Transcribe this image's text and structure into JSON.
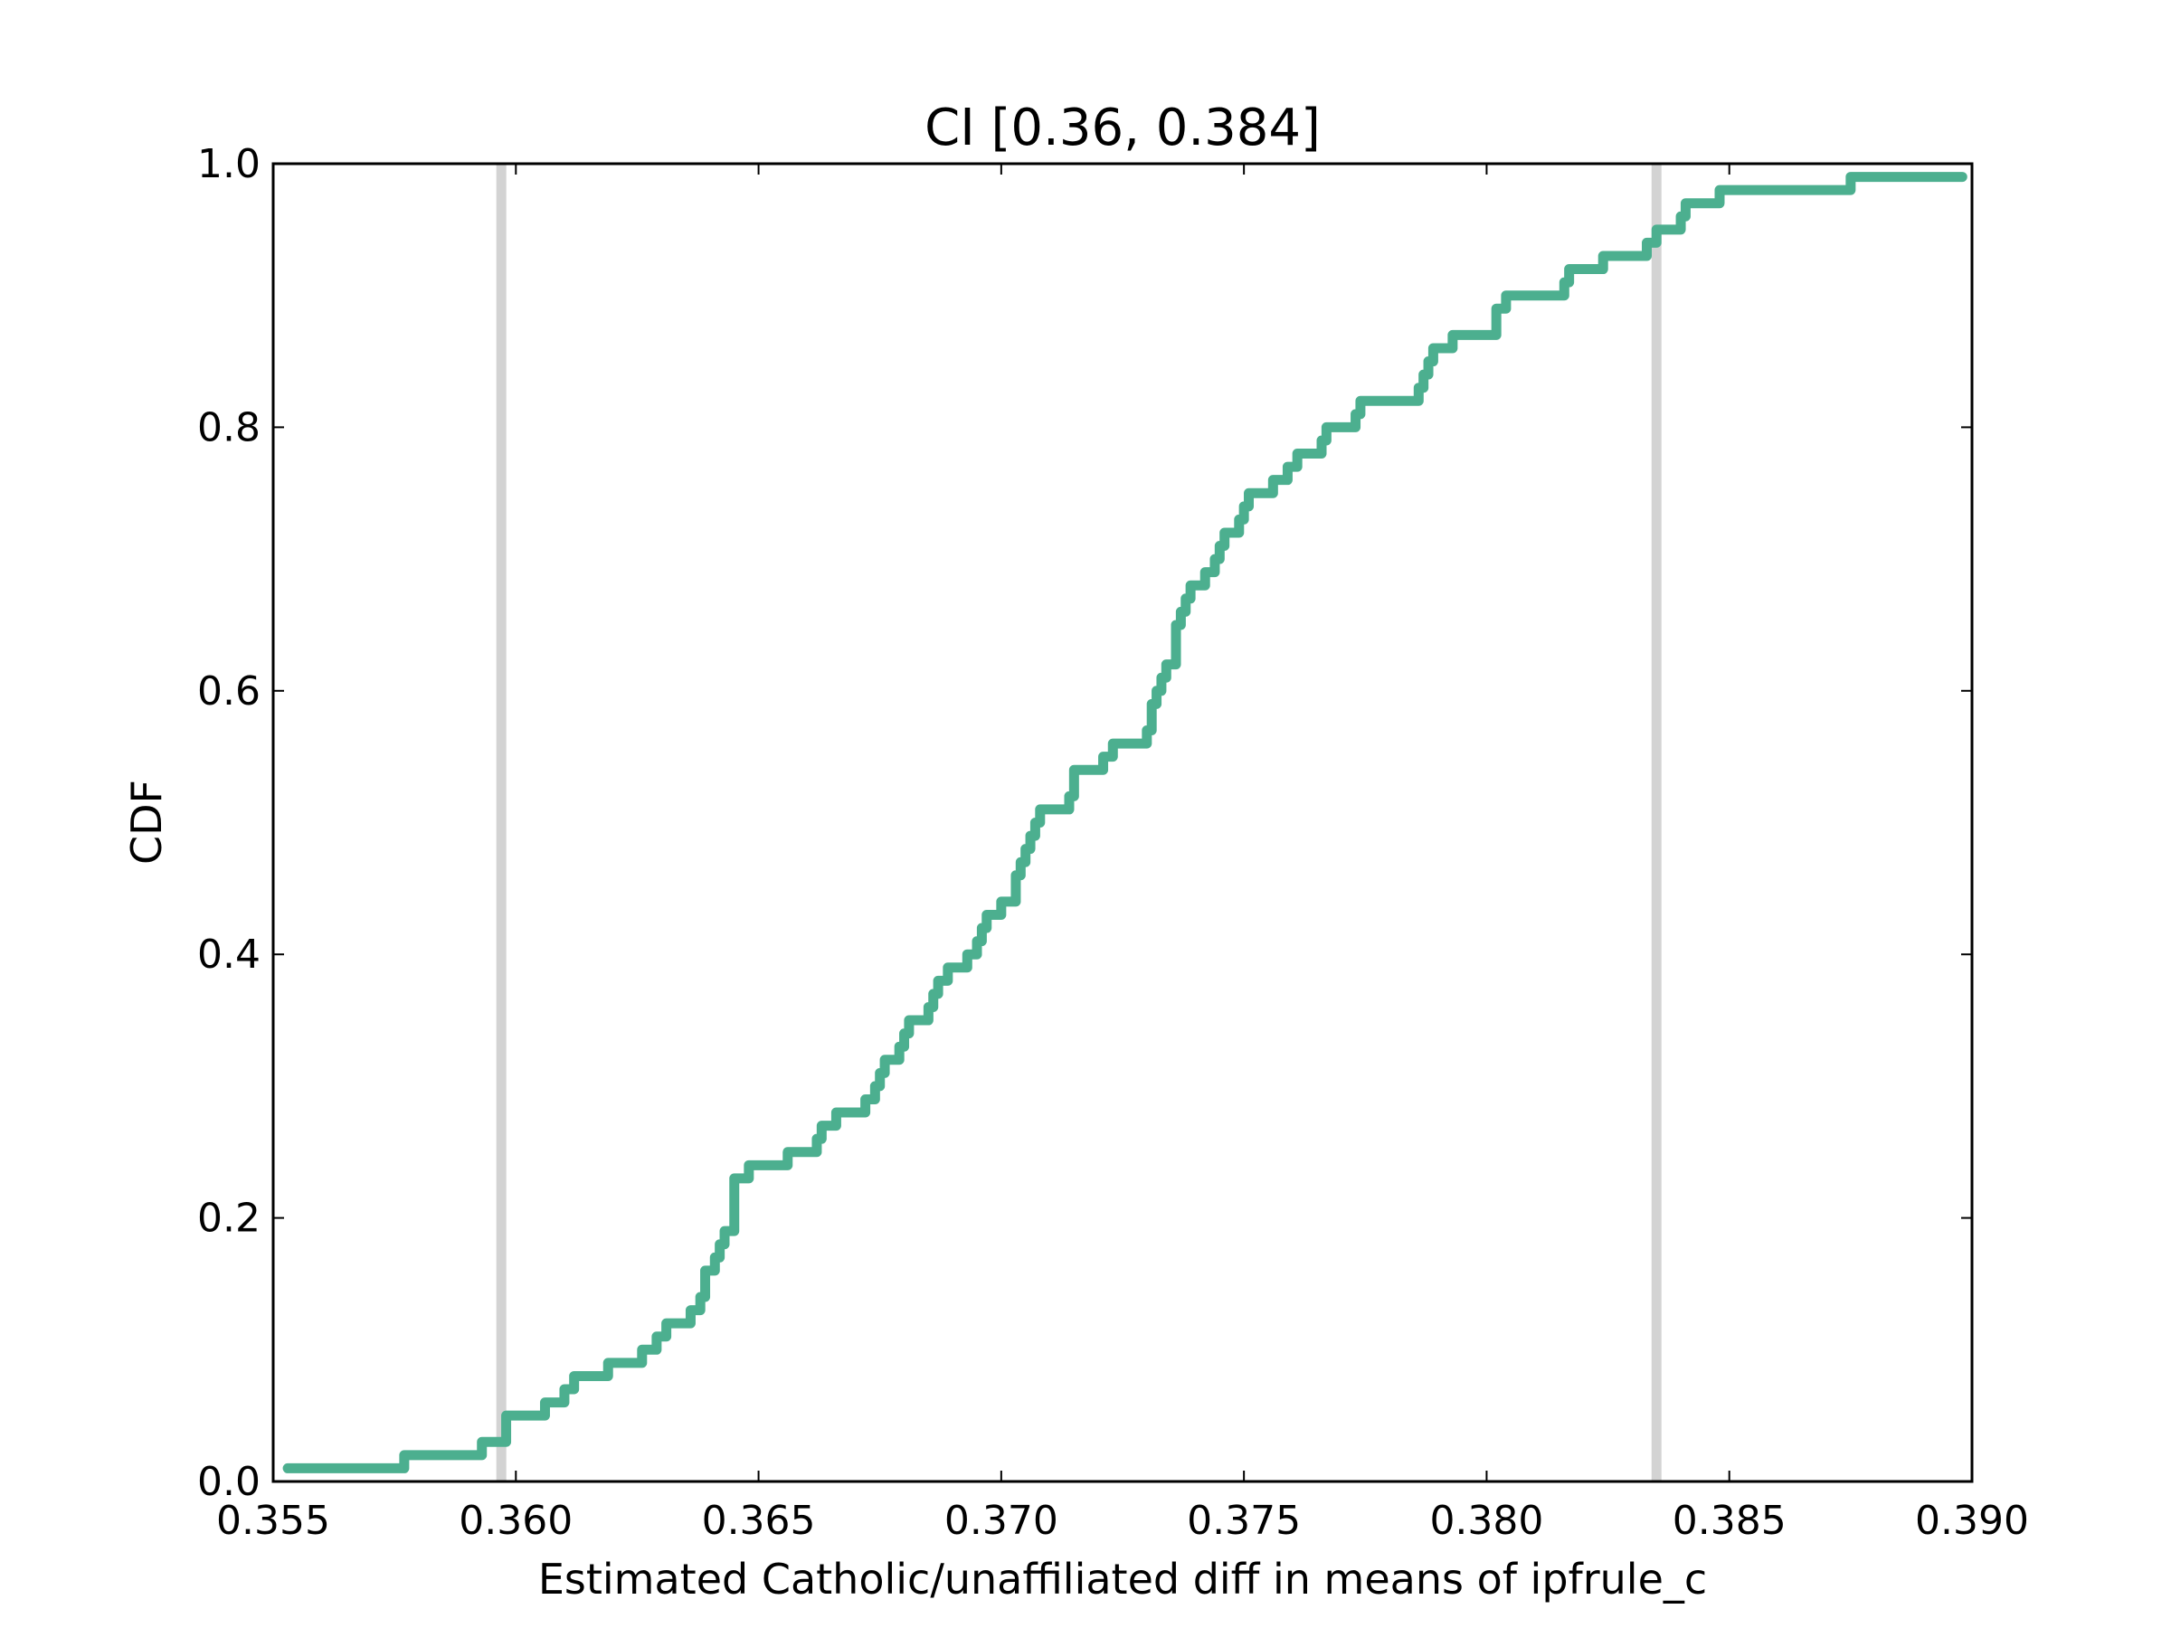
{
  "chart_data": {
    "type": "line",
    "step": true,
    "title": "CI [0.36, 0.384]",
    "xlabel": "Estimated Catholic/unaffiliated diff in means of ipfrule_c",
    "ylabel": "CDF",
    "xlim": [
      0.355,
      0.39
    ],
    "ylim": [
      0.0,
      1.0
    ],
    "xticks": [
      "0.355",
      "0.360",
      "0.365",
      "0.370",
      "0.375",
      "0.380",
      "0.385",
      "0.390"
    ],
    "yticks": [
      "0.0",
      "0.2",
      "0.4",
      "0.6",
      "0.8",
      "1.0"
    ],
    "grid": false,
    "ci_lines": [
      0.3597,
      0.3835
    ],
    "colors": {
      "series": "#4caf8f",
      "ci_line": "#d3d3d3",
      "axes": "#000000"
    },
    "series": [
      {
        "points": [
          [
            0.3553,
            0.01
          ],
          [
            0.3577,
            0.02
          ],
          [
            0.3593,
            0.03
          ],
          [
            0.3598,
            0.05
          ],
          [
            0.3606,
            0.06
          ],
          [
            0.361,
            0.07
          ],
          [
            0.3612,
            0.08
          ],
          [
            0.3619,
            0.09
          ],
          [
            0.3626,
            0.1
          ],
          [
            0.3629,
            0.11
          ],
          [
            0.3631,
            0.12
          ],
          [
            0.3636,
            0.13
          ],
          [
            0.3638,
            0.14
          ],
          [
            0.3639,
            0.15
          ],
          [
            0.3639,
            0.16
          ],
          [
            0.3641,
            0.17
          ],
          [
            0.3642,
            0.18
          ],
          [
            0.3643,
            0.19
          ],
          [
            0.3645,
            0.2
          ],
          [
            0.3645,
            0.21
          ],
          [
            0.3645,
            0.22
          ],
          [
            0.3645,
            0.23
          ],
          [
            0.3648,
            0.24
          ],
          [
            0.3656,
            0.25
          ],
          [
            0.3662,
            0.26
          ],
          [
            0.3663,
            0.27
          ],
          [
            0.3666,
            0.28
          ],
          [
            0.3672,
            0.29
          ],
          [
            0.3674,
            0.3
          ],
          [
            0.3675,
            0.31
          ],
          [
            0.3676,
            0.32
          ],
          [
            0.3679,
            0.33
          ],
          [
            0.368,
            0.34
          ],
          [
            0.3681,
            0.35
          ],
          [
            0.3685,
            0.36
          ],
          [
            0.3686,
            0.37
          ],
          [
            0.3687,
            0.38
          ],
          [
            0.3689,
            0.39
          ],
          [
            0.3693,
            0.4
          ],
          [
            0.3695,
            0.41
          ],
          [
            0.3696,
            0.42
          ],
          [
            0.3697,
            0.43
          ],
          [
            0.37,
            0.44
          ],
          [
            0.3703,
            0.45
          ],
          [
            0.3703,
            0.46
          ],
          [
            0.3704,
            0.47
          ],
          [
            0.3705,
            0.48
          ],
          [
            0.3706,
            0.49
          ],
          [
            0.3707,
            0.5
          ],
          [
            0.3708,
            0.51
          ],
          [
            0.3714,
            0.52
          ],
          [
            0.3715,
            0.54
          ],
          [
            0.3721,
            0.55
          ],
          [
            0.3723,
            0.56
          ],
          [
            0.373,
            0.57
          ],
          [
            0.3731,
            0.58
          ],
          [
            0.3731,
            0.59
          ],
          [
            0.3732,
            0.6
          ],
          [
            0.3733,
            0.61
          ],
          [
            0.3734,
            0.62
          ],
          [
            0.3736,
            0.63
          ],
          [
            0.3736,
            0.64
          ],
          [
            0.3736,
            0.65
          ],
          [
            0.3737,
            0.66
          ],
          [
            0.3738,
            0.67
          ],
          [
            0.3739,
            0.68
          ],
          [
            0.3742,
            0.69
          ],
          [
            0.3744,
            0.7
          ],
          [
            0.3745,
            0.71
          ],
          [
            0.3746,
            0.72
          ],
          [
            0.3749,
            0.73
          ],
          [
            0.375,
            0.74
          ],
          [
            0.3751,
            0.75
          ],
          [
            0.3756,
            0.76
          ],
          [
            0.3759,
            0.77
          ],
          [
            0.3761,
            0.78
          ],
          [
            0.3766,
            0.79
          ],
          [
            0.3767,
            0.8
          ],
          [
            0.3773,
            0.81
          ],
          [
            0.3774,
            0.82
          ],
          [
            0.3786,
            0.83
          ],
          [
            0.3787,
            0.84
          ],
          [
            0.3788,
            0.85
          ],
          [
            0.3789,
            0.86
          ],
          [
            0.3793,
            0.87
          ],
          [
            0.3802,
            0.88
          ],
          [
            0.3802,
            0.89
          ],
          [
            0.3804,
            0.9
          ],
          [
            0.3816,
            0.91
          ],
          [
            0.3817,
            0.92
          ],
          [
            0.3824,
            0.93
          ],
          [
            0.3833,
            0.94
          ],
          [
            0.3835,
            0.95
          ],
          [
            0.384,
            0.96
          ],
          [
            0.3841,
            0.97
          ],
          [
            0.3848,
            0.98
          ],
          [
            0.3875,
            0.99
          ],
          [
            0.3898,
            0.99
          ]
        ]
      }
    ]
  }
}
